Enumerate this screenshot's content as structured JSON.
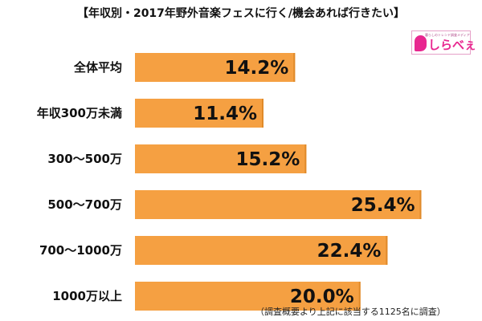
{
  "title": "【年収別・2017年野外音楽フェスに行く/機会あれば行きたい】",
  "logo": {
    "tagline": "暮らしのトレンド調査メディア",
    "text": "しらべぇ",
    "icon": "shirabee-logo-icon"
  },
  "footnote": "（調査概要より上記に該当する1125名に調査）",
  "colors": {
    "bar": "#f5a042",
    "bar_edge": "#e08a2a",
    "text": "#111111",
    "brand": "#e8268f"
  },
  "chart_data": {
    "type": "bar",
    "orientation": "horizontal",
    "categories": [
      "全体平均",
      "年収300万未満",
      "300〜500万",
      "500〜700万",
      "700〜1000万",
      "1000万以上"
    ],
    "values": [
      14.2,
      11.4,
      15.2,
      25.4,
      22.4,
      20.0
    ],
    "value_labels": [
      "14.2%",
      "11.4%",
      "15.2%",
      "25.4%",
      "22.4%",
      "20.0%"
    ],
    "unit": "%",
    "xlim": [
      0,
      28
    ],
    "title": "【年収別・2017年野外音楽フェスに行く/機会あれば行きたい】",
    "xlabel": "",
    "ylabel": "",
    "grid": false
  }
}
